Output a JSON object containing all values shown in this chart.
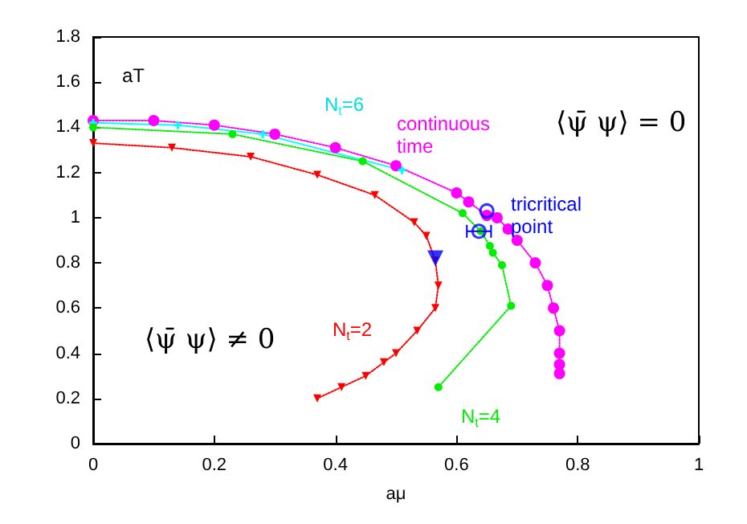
{
  "chart_data": {
    "type": "line",
    "xlabel": "aμ",
    "ylabel": "aT",
    "xlim": [
      0,
      1
    ],
    "xticks": [
      0,
      0.2,
      0.4,
      0.6,
      0.8,
      1
    ],
    "ylim": [
      0,
      1.8
    ],
    "yticks": [
      0,
      0.2,
      0.4,
      0.6,
      0.8,
      1,
      1.2,
      1.4,
      1.6,
      1.8
    ],
    "grid": false,
    "legend": false,
    "series": [
      {
        "name": "continuous time",
        "color": "#ff00ff",
        "marker": "circle",
        "line_style": "dotted",
        "x": [
          0,
          0.1,
          0.2,
          0.3,
          0.4,
          0.5,
          0.6,
          0.62,
          0.65,
          0.667,
          0.685,
          0.7,
          0.73,
          0.75,
          0.76,
          0.77,
          0.77,
          0.77,
          0.77
        ],
        "values": [
          1.43,
          1.43,
          1.41,
          1.37,
          1.31,
          1.23,
          1.11,
          1.07,
          1.01,
          1.0,
          0.95,
          0.9,
          0.8,
          0.7,
          0.6,
          0.5,
          0.4,
          0.35,
          0.31
        ]
      },
      {
        "name": "N$_{t}$=6",
        "color": "#00ffff",
        "marker": "cross",
        "line_style": "solid",
        "x": [
          0,
          0.14,
          0.28,
          0.51
        ],
        "values": [
          1.42,
          1.41,
          1.37,
          1.21
        ]
      },
      {
        "name": "N$_{t}$=4",
        "color": "#00ee00",
        "marker": "circle",
        "line_style": "dotted",
        "x": [
          0,
          0.23,
          0.445,
          0.61,
          0.64,
          0.655,
          0.66,
          0.675,
          0.69,
          0.57
        ],
        "values": [
          1.4,
          1.37,
          1.25,
          1.02,
          0.94,
          0.875,
          0.845,
          0.79,
          0.61,
          0.25
        ]
      },
      {
        "name": "N$_{t}$=2",
        "color": "#ff0000",
        "marker": "triangle",
        "line_style": "dotted",
        "x": [
          0,
          0.13,
          0.26,
          0.37,
          0.465,
          0.53,
          0.55,
          0.565,
          0.57,
          0.565,
          0.535,
          0.5,
          0.48,
          0.45,
          0.41,
          0.37
        ],
        "values": [
          1.33,
          1.31,
          1.27,
          1.19,
          1.1,
          0.98,
          0.92,
          0.81,
          0.7,
          0.6,
          0.5,
          0.4,
          0.36,
          0.3,
          0.25,
          0.2
        ]
      },
      {
        "type": "scatter",
        "color": "#0000ff",
        "marker": "triangle",
        "x": [
          0.565
        ],
        "values": [
          0.82
        ]
      },
      {
        "type": "scatter",
        "name": "tricritical point",
        "color": "#0000ff",
        "marker": "circle",
        "x": [
          0.65,
          0.637
        ],
        "values": [
          1.03,
          0.94
        ],
        "xerrors": [
          null,
          0.02
        ]
      }
    ],
    "annotations": [
      "⟨ψ̄ ψ⟩ = 0",
      "⟨ψ̄ ψ⟩ ≠ 0"
    ]
  }
}
